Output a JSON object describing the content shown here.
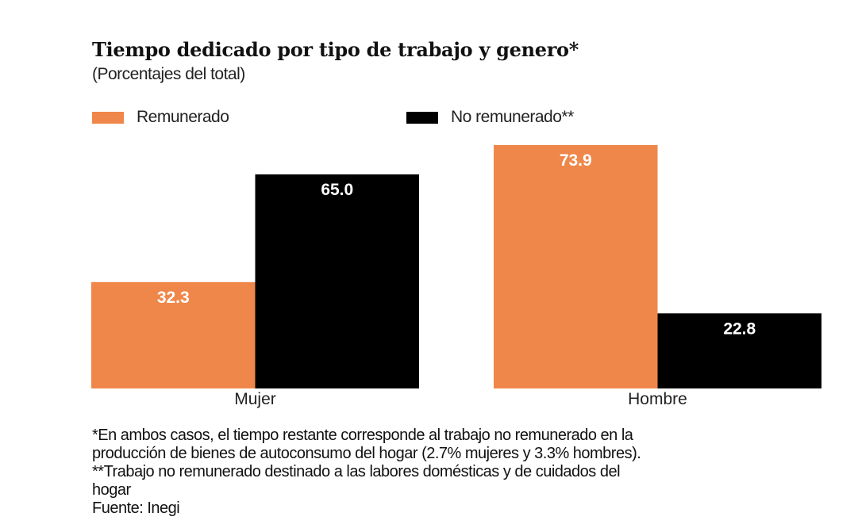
{
  "chart_data": {
    "type": "bar",
    "title": "Tiempo dedicado por tipo de trabajo y genero*",
    "subtitle": "(Porcentajes del total)",
    "categories": [
      "Mujer",
      "Hombre"
    ],
    "series": [
      {
        "name": "Remunerado",
        "values": [
          32.3,
          73.9
        ],
        "labels": [
          "32.3",
          "73.9"
        ],
        "color": "#F0874A"
      },
      {
        "name": "No remunerado**",
        "values": [
          65.0,
          22.8
        ],
        "labels": [
          "65.0",
          "22.8"
        ],
        "color": "#000000"
      }
    ],
    "ylim": [
      0,
      73.9
    ],
    "grid": false,
    "legend": "top-left",
    "notes": [
      "*En ambos casos, el tiempo restante corresponde al trabajo no remunerado en la",
      "producción de bienes de autoconsumo del hogar (2.7% mujeres y 3.3% hombres).",
      "**Trabajo no remunerado destinado a las labores domésticas y de cuidados del",
      "hogar",
      "Fuente: Inegi"
    ]
  }
}
